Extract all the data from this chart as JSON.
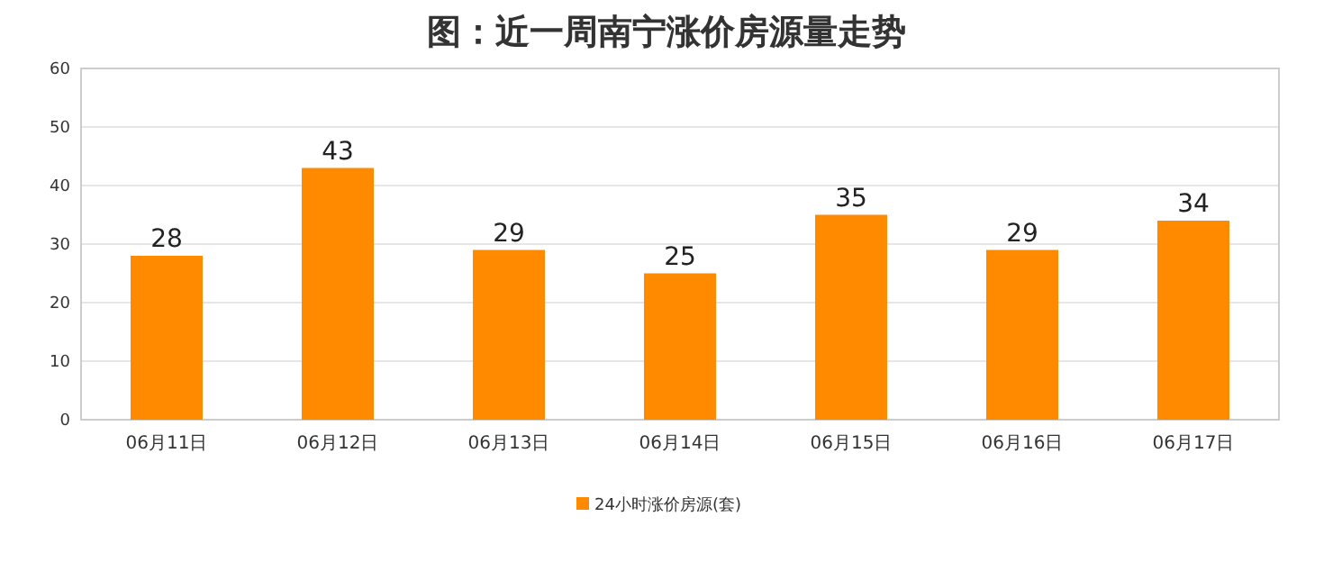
{
  "chart_data": {
    "type": "bar",
    "title": "图：近一周南宁涨价房源量走势",
    "categories": [
      "06月11日",
      "06月12日",
      "06月13日",
      "06月14日",
      "06月15日",
      "06月16日",
      "06月17日"
    ],
    "series": [
      {
        "name": "24小时涨价房源(套)",
        "color": "#ff8a00",
        "values": [
          28,
          43,
          29,
          25,
          35,
          29,
          34
        ]
      }
    ],
    "ylim": [
      0,
      60
    ],
    "yticks": [
      0,
      10,
      20,
      30,
      40,
      50,
      60
    ],
    "grid": "y",
    "legend": "bottom",
    "data_labels": true
  }
}
